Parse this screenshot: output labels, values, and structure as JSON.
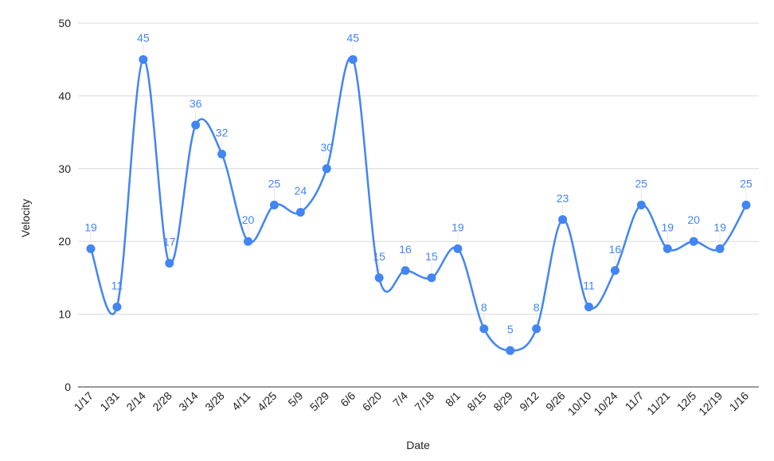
{
  "chart_data": {
    "type": "line",
    "title": "",
    "xlabel": "Date",
    "ylabel": "Velocity",
    "ylim": [
      0,
      50
    ],
    "yticks": [
      0,
      10,
      20,
      30,
      40,
      50
    ],
    "grid": true,
    "legend": "none",
    "smooth": true,
    "categories": [
      "1/17",
      "1/31",
      "2/14",
      "2/28",
      "3/14",
      "3/28",
      "4/11",
      "4/25",
      "5/9",
      "5/29",
      "6/6",
      "6/20",
      "7/4",
      "7/18",
      "8/1",
      "8/15",
      "8/29",
      "9/12",
      "9/26",
      "10/10",
      "10/24",
      "11/7",
      "11/21",
      "12/5",
      "12/19",
      "1/16"
    ],
    "series": [
      {
        "color": "#4285f4",
        "values": [
          19,
          11,
          45,
          17,
          36,
          32,
          20,
          25,
          24,
          30,
          45,
          15,
          16,
          15,
          19,
          8,
          5,
          8,
          23,
          11,
          16,
          25,
          19,
          20,
          19,
          25
        ]
      }
    ]
  }
}
